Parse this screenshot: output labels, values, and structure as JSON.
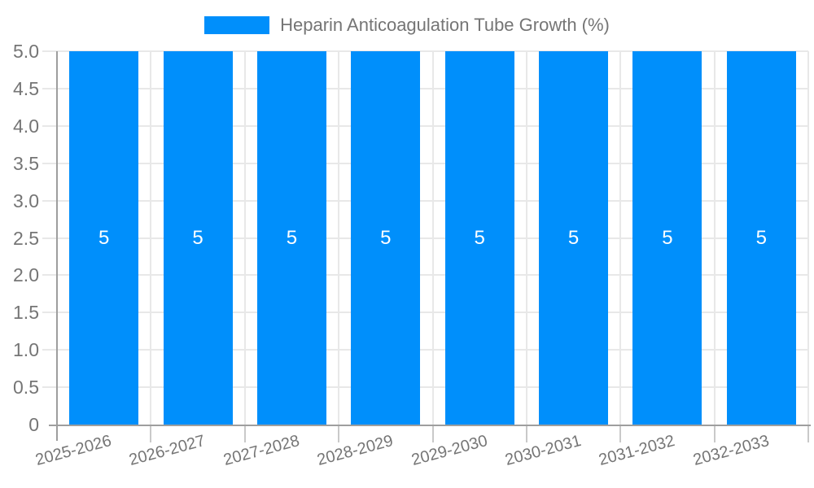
{
  "legend": {
    "label": "Heparin Anticoagulation Tube Growth (%)",
    "swatch_color": "#008FFB",
    "position": "top"
  },
  "chart_data": {
    "type": "bar",
    "title": "Heparin Anticoagulation Tube Growth (%)",
    "categories": [
      "2025-2026",
      "2026-2027",
      "2027-2028",
      "2028-2029",
      "2029-2030",
      "2030-2031",
      "2031-2032",
      "2032-2033"
    ],
    "values": [
      5,
      5,
      5,
      5,
      5,
      5,
      5,
      5
    ],
    "bar_labels": [
      "5",
      "5",
      "5",
      "5",
      "5",
      "5",
      "5",
      "5"
    ],
    "xlabel": "",
    "ylabel": "",
    "ylim": [
      0,
      5
    ],
    "y_tick_labels": [
      "0",
      "0.5",
      "1.0",
      "1.5",
      "2.0",
      "2.5",
      "3.0",
      "3.5",
      "4.0",
      "4.5",
      "5.0"
    ],
    "grid": "on",
    "legend_position": "top-center",
    "x_label_rotation_deg": -15
  },
  "colors": {
    "bar": "#008FFB",
    "bar_value_text": "#ffffff",
    "grid_line": "#e8e8e8",
    "axis_line": "#9e9e9e",
    "minor_tick": "#c9c9c9",
    "axis_text": "#757575",
    "legend_text": "#757575",
    "background": "#ffffff"
  }
}
